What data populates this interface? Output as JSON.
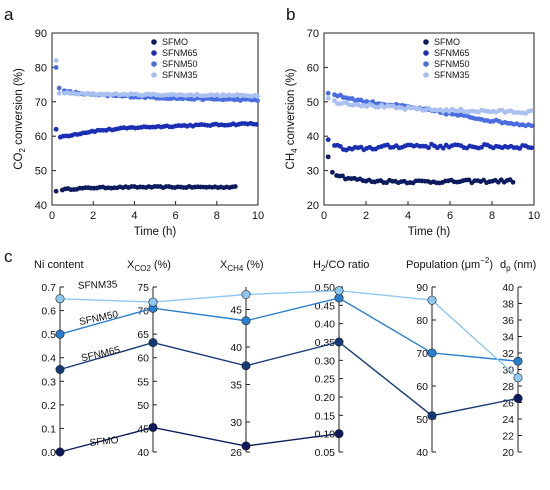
{
  "chart_data": [
    {
      "panel": "a",
      "type": "scatter",
      "xlabel": "Time (h)",
      "ylabel_main": "CO",
      "ylabel_sub": "2",
      "ylabel_tail": " conversion (%)",
      "xlim": [
        0,
        10
      ],
      "ylim": [
        40,
        90
      ],
      "xticks": [
        0,
        2,
        4,
        6,
        8,
        10
      ],
      "yticks": [
        40,
        50,
        60,
        70,
        80,
        90
      ],
      "legend_position": "top-right",
      "series": [
        {
          "name": "SFMO",
          "color": "#0d1b5e",
          "t_end": 9.0,
          "start": [
            [
              0.2,
              44.0
            ]
          ],
          "plateau": [
            [
              0.5,
              44.5
            ],
            [
              2,
              45.0
            ],
            [
              4,
              45.2
            ],
            [
              6,
              45.2
            ],
            [
              9,
              45.2
            ]
          ],
          "noise": 0.2
        },
        {
          "name": "SFNM65",
          "color": "#1a2fb3",
          "t_end": 10.0,
          "start": [
            [
              0.2,
              62.0
            ]
          ],
          "plateau": [
            [
              0.4,
              59.8
            ],
            [
              2,
              61.5
            ],
            [
              4,
              62.5
            ],
            [
              6,
              63.0
            ],
            [
              8,
              63.3
            ],
            [
              10,
              63.7
            ]
          ],
          "noise": 0.25
        },
        {
          "name": "SFNM50",
          "color": "#4a6ee0",
          "t_end": 10.0,
          "start": [
            [
              0.2,
              80.0
            ],
            [
              0.35,
              74.0
            ]
          ],
          "plateau": [
            [
              0.6,
              73.0
            ],
            [
              2,
              72.0
            ],
            [
              6,
              71.0
            ],
            [
              10,
              70.5
            ]
          ],
          "noise": 0.25
        },
        {
          "name": "SFNM35",
          "color": "#a9c0f0",
          "t_end": 10.0,
          "start": [
            [
              0.2,
              82.0
            ],
            [
              0.35,
              72.5
            ]
          ],
          "plateau": [
            [
              0.6,
              72.5
            ],
            [
              2,
              72.2
            ],
            [
              6,
              72.0
            ],
            [
              10,
              71.8
            ]
          ],
          "noise": 0.25
        }
      ]
    },
    {
      "panel": "b",
      "type": "scatter",
      "xlabel": "Time (h)",
      "ylabel_main": "CH",
      "ylabel_sub": "4",
      "ylabel_tail": " conversion (%)",
      "xlim": [
        0,
        10
      ],
      "ylim": [
        20,
        70
      ],
      "xticks": [
        0,
        2,
        4,
        6,
        8,
        10
      ],
      "yticks": [
        20,
        30,
        40,
        50,
        60,
        70
      ],
      "legend_position": "top-right",
      "series": [
        {
          "name": "SFMO",
          "color": "#0d1b5e",
          "t_end": 9.0,
          "start": [
            [
              0.2,
              34.0
            ],
            [
              0.4,
              29.5
            ]
          ],
          "plateau": [
            [
              0.6,
              29.0
            ],
            [
              1,
              28.0
            ],
            [
              2,
              27.0
            ],
            [
              4,
              26.8
            ],
            [
              6,
              26.8
            ],
            [
              9,
              27.0
            ]
          ],
          "noise": 0.45
        },
        {
          "name": "SFNM65",
          "color": "#1a2fb3",
          "t_end": 10.0,
          "start": [
            [
              0.2,
              39.0
            ]
          ],
          "plateau": [
            [
              0.5,
              37.5
            ],
            [
              1,
              36.0
            ],
            [
              2,
              36.5
            ],
            [
              4,
              37.3
            ],
            [
              6,
              37.0
            ],
            [
              10,
              37.0
            ]
          ],
          "noise": 0.6
        },
        {
          "name": "SFNM50",
          "color": "#4a6ee0",
          "t_end": 10.0,
          "start": [
            [
              0.2,
              52.5
            ]
          ],
          "plateau": [
            [
              0.5,
              52.0
            ],
            [
              2,
              50.0
            ],
            [
              4,
              48.5
            ],
            [
              6,
              46.5
            ],
            [
              8,
              44.5
            ],
            [
              10,
              43.0
            ]
          ],
          "noise": 0.35
        },
        {
          "name": "SFNM35",
          "color": "#a9c0f0",
          "t_end": 10.0,
          "start": [
            [
              0.2,
              51.0
            ]
          ],
          "plateau": [
            [
              0.5,
              50.0
            ],
            [
              2,
              49.0
            ],
            [
              4,
              48.0
            ],
            [
              6,
              47.5
            ],
            [
              8,
              47.2
            ],
            [
              10,
              47.0
            ]
          ],
          "noise": 0.45
        }
      ]
    },
    {
      "panel": "c",
      "type": "parallel-coordinates",
      "axes": [
        {
          "main": "Ni content",
          "sub": "",
          "tail": "",
          "min": 0.0,
          "max": 0.7,
          "ticks": [
            "0.0",
            "0.1",
            "0.2",
            "0.3",
            "0.4",
            "0.5",
            "0.6",
            "0.7"
          ]
        },
        {
          "main": "X",
          "sub": "CO2",
          "tail": " (%)",
          "min": 40,
          "max": 75,
          "ticks": [
            "40",
            "45",
            "50",
            "55",
            "60",
            "65",
            "70",
            "75"
          ]
        },
        {
          "main": "X",
          "sub": "CH4",
          "tail": " (%)",
          "min": 26,
          "max": 48,
          "ticks": [
            "26",
            "30",
            "35",
            "40",
            "45"
          ]
        },
        {
          "main": "H",
          "sub": "2",
          "tail": "/CO ratio",
          "min": 0.05,
          "max": 0.5,
          "ticks": [
            "0.05",
            "0.10",
            "0.15",
            "0.20",
            "0.25",
            "0.30",
            "0.35",
            "0.40",
            "0.45",
            "0.50"
          ]
        },
        {
          "main": "Population (μm",
          "sub": "",
          "sup": "−2",
          "tail": ")",
          "min": 40,
          "max": 90,
          "ticks": [
            "40",
            "50",
            "60",
            "70",
            "80",
            "90"
          ]
        },
        {
          "main": "d",
          "sub": "p",
          "tail": " (nm)",
          "min": 20,
          "max": 40,
          "ticks": [
            "20",
            "22",
            "24",
            "26",
            "28",
            "30",
            "32",
            "34",
            "36",
            "38",
            "40"
          ]
        }
      ],
      "lines": [
        {
          "name": "SFMO",
          "color": "#0d1b5e",
          "values": [
            0.0,
            45.2,
            26.8,
            0.1,
            null,
            null
          ]
        },
        {
          "name": "SFNM65",
          "color": "#163a78",
          "values": [
            0.35,
            63.2,
            37.5,
            0.35,
            51.0,
            26.5
          ]
        },
        {
          "name": "SFNM50",
          "color": "#2b7fd0",
          "values": [
            0.5,
            70.5,
            43.5,
            0.47,
            70.0,
            31.0
          ]
        },
        {
          "name": "SFNM35",
          "color": "#8ec8f0",
          "values": [
            0.65,
            71.8,
            47.0,
            0.49,
            86.0,
            29.0
          ]
        }
      ],
      "extra_points": [
        {
          "name": "SFMO",
          "axis": 5,
          "value": 26.5,
          "color": "#0d1b5e"
        }
      ]
    }
  ]
}
